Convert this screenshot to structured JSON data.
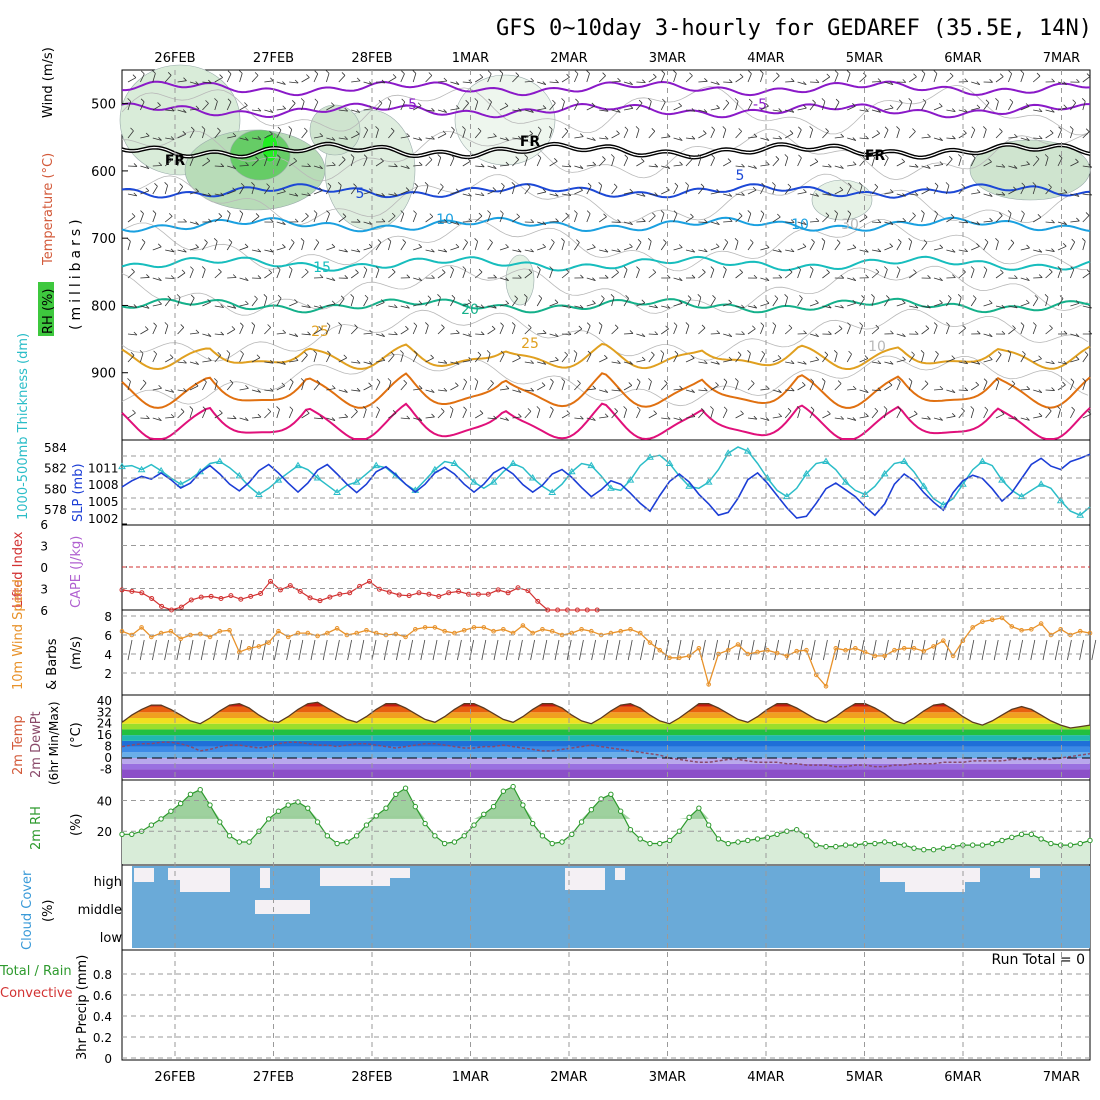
{
  "title": "GFS 0~10day 3-hourly for GEDAREF (35.5E, 14N)",
  "dates": [
    "26FEB",
    "27FEB",
    "28FEB",
    "1MAR",
    "2MAR",
    "3MAR",
    "4MAR",
    "5MAR",
    "6MAR",
    "7MAR"
  ],
  "run_total_label": "Run Total = 0",
  "chart_data": [
    {
      "type": "line",
      "panel": "upper-air",
      "ylabel_parts": [
        "RH (%)",
        "Temperature (°C)",
        "Wind (m/s)",
        "(millibars)"
      ],
      "y_ticks": [
        500,
        600,
        700,
        800,
        900
      ],
      "ylim": [
        1000,
        450
      ],
      "y_scale": "pressure (millibars)",
      "contour_labels": [
        "FR",
        "-5",
        "5",
        "10",
        "15",
        "20",
        "25",
        "10",
        "30"
      ],
      "isotherms": [
        {
          "name": "-5",
          "color": "#8a19c8",
          "pressure_mb": 477
        },
        {
          "name": "-5",
          "color": "#8a19c8",
          "pressure_mb": 510
        },
        {
          "name": "FR",
          "color": "#000000",
          "pressure_mb": 570
        },
        {
          "name": "5",
          "color": "#1c48d6",
          "pressure_mb": 630
        },
        {
          "name": "10",
          "color": "#1aa0e0",
          "pressure_mb": 680
        },
        {
          "name": "15",
          "color": "#17bdbd",
          "pressure_mb": 738
        },
        {
          "name": "20",
          "color": "#14b08a",
          "pressure_mb": 800
        },
        {
          "name": "25",
          "color": "#e0a020",
          "pressure_mb": 862
        },
        {
          "name": "30",
          "color": "#e07010",
          "pressure_mb": 905
        },
        {
          "name": "35",
          "color": "#e0107a",
          "pressure_mb": 950
        }
      ]
    },
    {
      "type": "line",
      "panel": "pressure",
      "ylabel_parts": [
        "1000-500mb Thickness (dm)",
        "SLP (mb)"
      ],
      "series": [
        {
          "name": "SLP (mb)",
          "color": "#1c3ed6",
          "axis_ticks": [
            1002,
            1005,
            1008,
            1011
          ],
          "values": [
            1007.5,
            1008.6,
            1009.4,
            1008.9,
            1010.0,
            1008.8,
            1007.3,
            1008.2,
            1010.1,
            1011.3,
            1009.8,
            1008.0,
            1006.8,
            1008.3,
            1010.4,
            1011.5,
            1010.0,
            1008.2,
            1006.6,
            1008.2,
            1010.5,
            1011.5,
            1009.8,
            1008.0,
            1006.5,
            1008.0,
            1010.2,
            1011.1,
            1009.7,
            1008.0,
            1006.6,
            1008.0,
            1010.0,
            1011.0,
            1009.8,
            1008.0,
            1006.6,
            1008.0,
            1010.0,
            1011.0,
            1009.8,
            1007.9,
            1006.6,
            1007.8,
            1009.8,
            1010.6,
            1009.2,
            1007.4,
            1005.8,
            1007.0,
            1008.6,
            1008.0,
            1006.4,
            1004.6,
            1003.2,
            1006.0,
            1008.5,
            1009.8,
            1008.4,
            1006.2,
            1004.5,
            1002.5,
            1003.0,
            1005.5,
            1008.8,
            1010.0,
            1008.2,
            1006.0,
            1003.8,
            1002.0,
            1002.3,
            1004.6,
            1007.2,
            1008.2,
            1007.0,
            1005.8,
            1004.0,
            1002.5,
            1004.5,
            1008.0,
            1009.8,
            1008.6,
            1006.5,
            1004.8,
            1003.4,
            1006.5,
            1008.6,
            1009.6,
            1009.0,
            1007.2,
            1005.0,
            1006.5,
            1009.0,
            1011.5,
            1012.6,
            1011.2,
            1010.6,
            1012.0,
            1012.6,
            1013.3
          ]
        },
        {
          "name": "1000-500mb Thickness (dm)",
          "color": "#2bbdc8",
          "axis_ticks": [
            578,
            580,
            582,
            584
          ],
          "values": [
            582.1,
            582.2,
            581.8,
            582.3,
            581.7,
            581.0,
            580.4,
            580.9,
            581.6,
            582.4,
            582.6,
            582.0,
            581.2,
            580.2,
            579.4,
            580.0,
            580.8,
            581.5,
            582.2,
            581.8,
            581.0,
            580.3,
            579.6,
            580.3,
            580.6,
            581.4,
            582.2,
            582.0,
            581.2,
            580.4,
            579.8,
            580.8,
            581.8,
            582.6,
            582.4,
            581.6,
            580.6,
            580.0,
            580.6,
            581.6,
            582.4,
            582.0,
            581.0,
            580.2,
            579.6,
            580.4,
            581.6,
            582.4,
            582.2,
            581.2,
            580.0,
            579.8,
            580.8,
            582.2,
            583.0,
            583.2,
            582.4,
            581.2,
            580.2,
            580.0,
            580.6,
            581.8,
            583.4,
            584.0,
            583.6,
            582.4,
            581.0,
            579.8,
            579.2,
            580.0,
            581.4,
            582.4,
            582.6,
            581.8,
            580.6,
            579.8,
            579.4,
            580.2,
            581.4,
            582.4,
            582.6,
            581.6,
            580.2,
            579.0,
            578.4,
            579.0,
            580.4,
            581.8,
            582.6,
            582.2,
            580.8,
            579.8,
            579.2,
            579.8,
            580.4,
            580.0,
            578.8,
            577.8,
            577.4,
            578.2
          ]
        }
      ]
    },
    {
      "type": "line",
      "panel": "stability",
      "ylabel_parts": [
        "Lifted Index",
        "CAPE (J/kg)"
      ],
      "y_ticks": [
        -6,
        -3,
        0,
        3,
        6
      ],
      "ylim": [
        -6,
        6
      ],
      "series": [
        {
          "name": "Lifted Index",
          "color": "#d23232",
          "values": [
            3.2,
            3.4,
            3.6,
            4.4,
            5.5,
            6.8,
            5.6,
            4.6,
            4.2,
            4.1,
            4.4,
            4.0,
            4.5,
            4.1,
            3.7,
            2.0,
            3.2,
            2.6,
            3.4,
            4.3,
            4.7,
            4.2,
            3.8,
            3.6,
            2.7,
            2.0,
            3.1,
            3.5,
            3.9,
            4.0,
            3.6,
            3.8,
            4.1,
            3.6,
            3.4,
            3.8,
            3.8,
            3.8,
            3.2,
            3.6,
            2.9,
            3.3,
            4.8,
            6.1,
            7.5,
            6.5,
            7.2,
            6.0,
            7.5
          ]
        }
      ]
    },
    {
      "type": "line",
      "panel": "wind",
      "ylabel_parts": [
        "10m Wind Speed",
        "& Barbs",
        "(m/s)"
      ],
      "y_ticks": [
        2,
        4,
        6,
        8
      ],
      "ylim": [
        0,
        8
      ],
      "series": [
        {
          "name": "10m Wind Speed",
          "color": "#e8922a",
          "values": [
            6.4,
            6.0,
            6.8,
            5.8,
            6.2,
            6.4,
            5.6,
            6.0,
            6.1,
            5.8,
            6.4,
            6.5,
            4.2,
            4.6,
            4.8,
            5.2,
            6.4,
            5.8,
            6.2,
            6.2,
            5.9,
            6.2,
            6.7,
            6.0,
            6.2,
            6.5,
            6.2,
            6.0,
            6.1,
            5.8,
            6.6,
            6.8,
            6.8,
            6.4,
            6.2,
            6.5,
            6.8,
            6.8,
            6.4,
            6.6,
            6.2,
            7.0,
            6.2,
            6.6,
            6.4,
            6.0,
            6.2,
            6.6,
            6.4,
            6.0,
            6.2,
            6.4,
            6.6,
            6.2,
            5.2,
            4.4,
            3.6,
            3.6,
            3.8,
            4.6,
            0.8,
            4.0,
            4.4,
            5.0,
            4.0,
            4.2,
            4.4,
            4.1,
            3.8,
            4.3,
            4.4,
            1.8,
            0.6,
            4.6,
            4.4,
            4.6,
            4.2,
            3.8,
            3.8,
            4.4,
            4.6,
            4.6,
            4.3,
            4.8,
            5.4,
            3.8,
            5.4,
            6.8,
            7.4,
            7.6,
            7.8,
            6.9,
            6.5,
            6.6,
            7.2,
            6.0,
            6.6,
            6.0,
            6.4,
            6.2
          ]
        }
      ]
    },
    {
      "type": "area",
      "panel": "temperature",
      "ylabel_parts": [
        "2m Temp",
        "2m DewPt",
        "(6hr Min/Max)",
        "(°C)"
      ],
      "y_ticks": [
        -8,
        0,
        8,
        16,
        24,
        32,
        40
      ],
      "ylim": [
        -14,
        42
      ],
      "series": [
        {
          "name": "2m Temp",
          "color": "#7a5030",
          "values": [
            25,
            30,
            34,
            37,
            37,
            34,
            30,
            26,
            24,
            28,
            33,
            37,
            38,
            35,
            30,
            26,
            25,
            29,
            34,
            38,
            39,
            35,
            31,
            27,
            25,
            29,
            34,
            38,
            38,
            35,
            31,
            27,
            25,
            29,
            34,
            38,
            38,
            35,
            31,
            27,
            25,
            29,
            34,
            38,
            38,
            35,
            30,
            26,
            24,
            28,
            33,
            37,
            38,
            35,
            30,
            26,
            24,
            28,
            33,
            38,
            38,
            35,
            31,
            27,
            25,
            29,
            34,
            38,
            38,
            35,
            31,
            27,
            25,
            29,
            34,
            38,
            38,
            35,
            31,
            26,
            24,
            28,
            33,
            37,
            38,
            34,
            29,
            25,
            23,
            26,
            30,
            34,
            36,
            34,
            30,
            26,
            23,
            21,
            22,
            23
          ]
        },
        {
          "name": "2m DewPt",
          "color": "#8a4a6a",
          "values": [
            8,
            9,
            10,
            10,
            11,
            11,
            10,
            8,
            5,
            6,
            8,
            9,
            9,
            8,
            7,
            8,
            10,
            11,
            11,
            10,
            9,
            9,
            8,
            9,
            10,
            10,
            9,
            8,
            7,
            8,
            9,
            10,
            10,
            9,
            8,
            7,
            7,
            8,
            8,
            9,
            8,
            7,
            6,
            5,
            5,
            6,
            7,
            8,
            9,
            8,
            7,
            6,
            5,
            4,
            3,
            2,
            0,
            -1,
            -2,
            -3,
            -3,
            -2,
            -1,
            -1,
            -2,
            -3,
            -3,
            -3,
            -4,
            -4,
            -5,
            -5,
            -5,
            -6,
            -6,
            -5,
            -5,
            -6,
            -6,
            -5,
            -5,
            -4,
            -4,
            -4,
            -3,
            -3,
            -3,
            -2,
            -2,
            -2,
            -2,
            -1,
            -1,
            -1,
            -1,
            -1,
            0,
            1,
            2,
            3
          ]
        }
      ]
    },
    {
      "type": "area",
      "panel": "humidity",
      "ylabel_parts": [
        "2m RH",
        "(%)"
      ],
      "y_ticks": [
        20,
        40
      ],
      "ylim": [
        0,
        52
      ],
      "series": [
        {
          "name": "2m RH",
          "color": "#2e9a2e",
          "values": [
            18,
            18,
            20,
            24,
            28,
            33,
            38,
            44,
            47,
            37,
            26,
            17,
            13,
            13,
            20,
            28,
            33,
            37,
            39,
            35,
            26,
            17,
            12,
            13,
            17,
            24,
            30,
            35,
            44,
            48,
            36,
            25,
            17,
            12,
            13,
            17,
            24,
            31,
            36,
            46,
            49,
            37,
            25,
            17,
            12,
            13,
            18,
            26,
            34,
            41,
            44,
            33,
            21,
            15,
            12,
            12,
            14,
            20,
            29,
            35,
            24,
            15,
            12,
            13,
            14,
            15,
            16,
            18,
            20,
            21,
            17,
            11,
            10,
            10,
            11,
            11,
            12,
            12,
            13,
            12,
            11,
            9,
            8,
            8,
            9,
            10,
            11,
            11,
            11,
            12,
            14,
            16,
            18,
            18,
            15,
            12,
            11,
            11,
            12,
            14
          ]
        }
      ]
    },
    {
      "type": "area",
      "panel": "cloud",
      "ylabel_parts": [
        "Cloud Cover",
        "(%)"
      ],
      "y_ticks": [
        "high",
        "middle",
        "low"
      ]
    },
    {
      "type": "bar",
      "panel": "precip",
      "ylabel_parts": [
        "Total / Rain",
        "Convective",
        "3hr Precip (mm)"
      ],
      "y_ticks": [
        0,
        0.2,
        0.4,
        0.6,
        0.8
      ],
      "ylim": [
        0,
        1
      ],
      "values": []
    }
  ]
}
